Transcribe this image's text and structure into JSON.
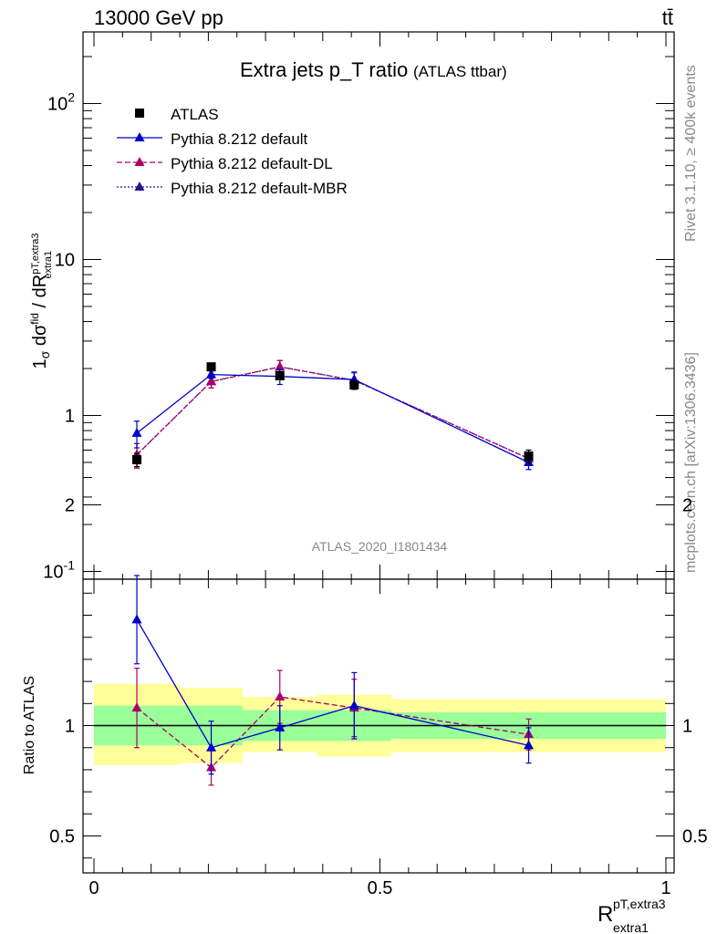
{
  "header": {
    "left": "13000 GeV pp",
    "right": "tt̄"
  },
  "side_text": {
    "rivet": "Rivet 3.1.10, ≥ 400k events",
    "mcplots": "mcplots.cern.ch [arXiv:1306.3436]"
  },
  "chart_data": [
    {
      "type": "scatter",
      "title": "Extra jets p_T ratio",
      "subtitle": "(ATLAS ttbar)",
      "analysis_label": "ATLAS_2020_I1801434",
      "ylabel": "1/σ dσ^fid / dR^{pT,extra3}_{extra1}",
      "xlabel": "R^{pT,extra3}_{extra1}",
      "yscale": "log",
      "xlim": [
        0,
        1
      ],
      "ylim": [
        0.1,
        300
      ],
      "y_ticks": [
        "10^{-1}",
        "1",
        "10",
        "10^{2}"
      ],
      "x": [
        0.075,
        0.205,
        0.325,
        0.455,
        0.76
      ],
      "legend_position": "top-left",
      "series": [
        {
          "name": "ATLAS",
          "color": "#000000",
          "marker": "square",
          "values": [
            0.52,
            2.05,
            1.8,
            1.57,
            0.55
          ],
          "err": [
            0.05,
            0.1,
            0.1,
            0.1,
            0.05
          ]
        },
        {
          "name": "Pythia 8.212 default",
          "color": "#0000cc",
          "marker": "triangle",
          "line": "solid",
          "values": [
            0.77,
            1.83,
            1.78,
            1.7,
            0.5
          ],
          "err": [
            0.15,
            0.1,
            0.2,
            0.2,
            0.05
          ]
        },
        {
          "name": "Pythia 8.212 default-DL",
          "color": "#aa0066",
          "marker": "triangle",
          "line": "dashed",
          "values": [
            0.56,
            1.65,
            2.05,
            1.68,
            0.53
          ],
          "err": [
            0.1,
            0.15,
            0.2,
            0.2,
            0.05
          ]
        },
        {
          "name": "Pythia 8.212 default-MBR",
          "color": "#2a1199",
          "marker": "triangle",
          "line": "dotted",
          "values": [
            0.56,
            1.65,
            2.05,
            1.68,
            0.53
          ],
          "err": [
            0.1,
            0.15,
            0.2,
            0.2,
            0.05
          ]
        }
      ]
    },
    {
      "type": "scatter",
      "ylabel": "Ratio to ATLAS",
      "xlabel": "R^{pT,extra3}_{extra1}",
      "xlim": [
        0,
        1
      ],
      "ylim": [
        0.38,
        2.35
      ],
      "y_ticks": [
        "0.5",
        "1",
        "2"
      ],
      "x_ticks": [
        "0",
        "0.5",
        "1"
      ],
      "bins": [
        {
          "x0": 0.0,
          "x1": 0.15,
          "green": [
            0.91,
            1.09
          ],
          "yellow": [
            0.82,
            1.19
          ]
        },
        {
          "x0": 0.15,
          "x1": 0.26,
          "green": [
            0.91,
            1.09
          ],
          "yellow": [
            0.83,
            1.17
          ]
        },
        {
          "x0": 0.26,
          "x1": 0.39,
          "green": [
            0.93,
            1.07
          ],
          "yellow": [
            0.88,
            1.13
          ]
        },
        {
          "x0": 0.39,
          "x1": 0.52,
          "green": [
            0.93,
            1.07
          ],
          "yellow": [
            0.86,
            1.14
          ]
        },
        {
          "x0": 0.52,
          "x1": 1.0,
          "green": [
            0.94,
            1.06
          ],
          "yellow": [
            0.88,
            1.12
          ]
        }
      ],
      "x": [
        0.075,
        0.205,
        0.325,
        0.455,
        0.76
      ],
      "series": [
        {
          "name": "Pythia 8.212 default",
          "color": "#0000cc",
          "line": "solid",
          "values": [
            1.48,
            0.9,
            0.99,
            1.09,
            0.91
          ],
          "err": [
            0.2,
            0.12,
            0.1,
            0.15,
            0.08
          ]
        },
        {
          "name": "Pythia 8.212 default-DL",
          "color": "#aa0066",
          "line": "dashed",
          "values": [
            1.08,
            0.81,
            1.13,
            1.08,
            0.96
          ],
          "err": [
            0.18,
            0.08,
            0.12,
            0.13,
            0.07
          ]
        }
      ]
    }
  ]
}
